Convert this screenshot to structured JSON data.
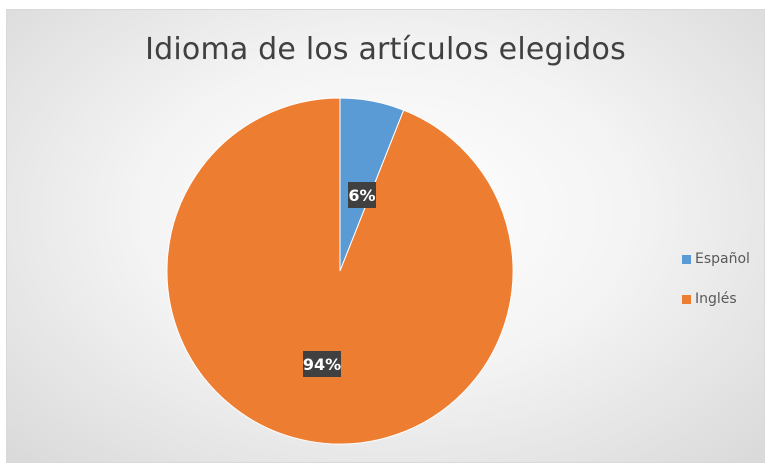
{
  "chart_data": {
    "type": "pie",
    "title": "Idioma de los artículos elegidos",
    "slices": [
      {
        "name": "Español",
        "value": 6,
        "label": "6%",
        "color": "#5B9BD5"
      },
      {
        "name": "Inglés",
        "value": 94,
        "label": "94%",
        "color": "#ED7D31"
      }
    ],
    "legend_position": "right"
  }
}
